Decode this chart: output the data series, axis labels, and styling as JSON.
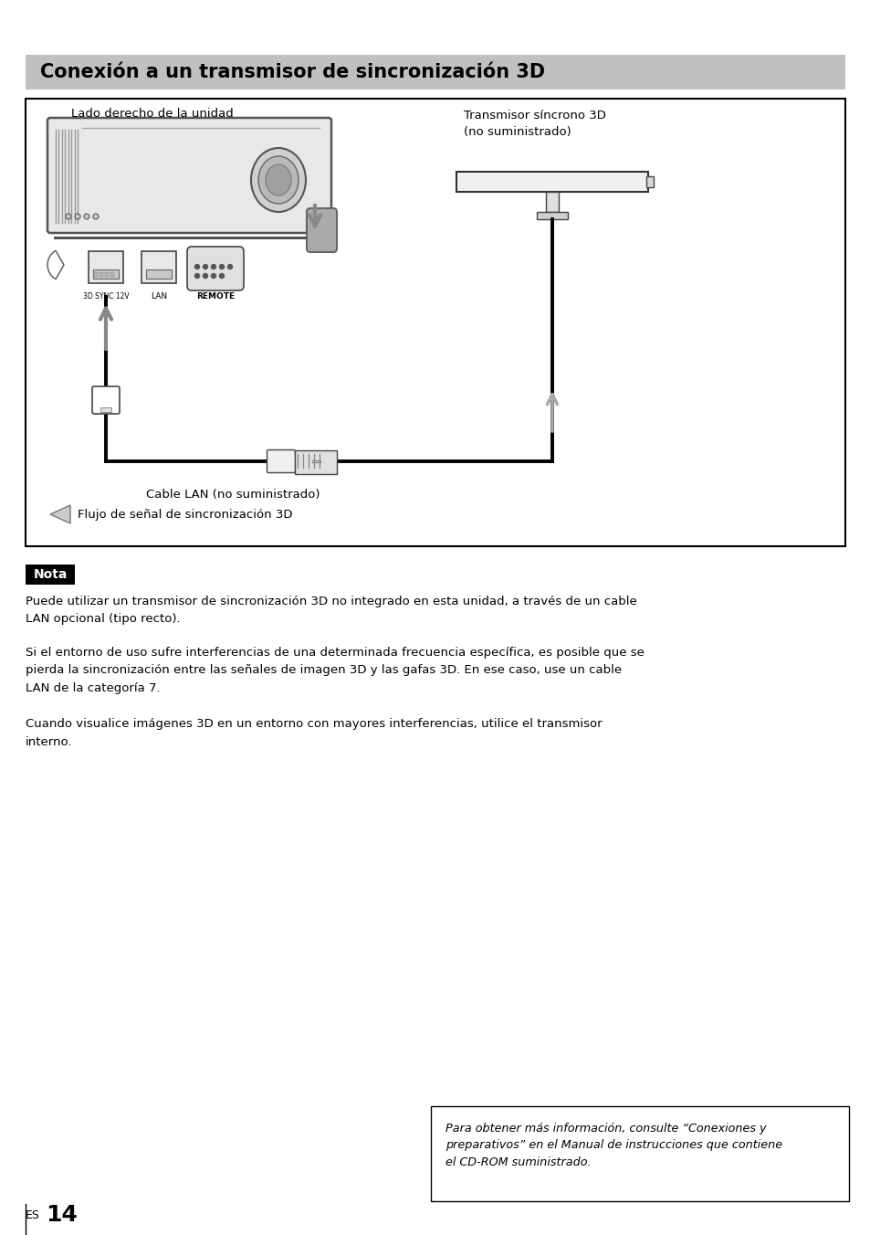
{
  "page_bg": "#ffffff",
  "title_text": "Conexión a un transmisor de sincronización 3D",
  "title_bg": "#c0c0c0",
  "title_color": "#000000",
  "title_fontsize": 15,
  "label_lado": "Lado derecho de la unidad",
  "label_transmisor": "Transmisor síncrono 3D\n(no suministrado)",
  "label_cable": "Cable LAN (no suministrado)",
  "label_flujo": "Flujo de señal de sincronización 3D",
  "label_3dsync": "3D SYNC 12V",
  "label_lan": "LAN",
  "label_remote": "REMOTE",
  "nota_title": "Nota",
  "nota_text1": "Puede utilizar un transmisor de sincronización 3D no integrado en esta unidad, a través de un cable\nLAN opcional (tipo recto).",
  "nota_text2": "Si el entorno de uso sufre interferencias de una determinada frecuencia específica, es posible que se\npierda la sincronización entre las señales de imagen 3D y las gafas 3D. En ese caso, use un cable\nLAN de la categoría 7.",
  "nota_text3": "Cuando visualice imágenes 3D en un entorno con mayores interferencias, utilice el transmisor\ninterno.",
  "footer_text": "Para obtener más información, consulte “Conexiones y\npreparativos” en el Manual de instrucciones que contiene\nel CD-ROM suministrado.",
  "page_number": "14",
  "page_number_prefix": "ES"
}
